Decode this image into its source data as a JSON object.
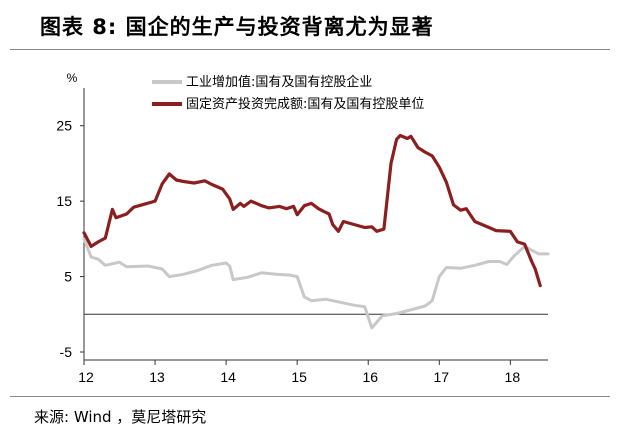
{
  "title": "图表 8:  国企的生产与投资背离尤为显著",
  "source": "来源:  Wind ，莫尼塔研究",
  "chart_data": {
    "type": "line",
    "unit_label": "%",
    "ylim": [
      -5,
      30
    ],
    "y_ticks": [
      25,
      15,
      5,
      -5
    ],
    "y_tick_labels": [
      "25",
      "15",
      "5",
      "-5"
    ],
    "x_ticks": [
      2012,
      2013,
      2014,
      2015,
      2016,
      2017,
      2018
    ],
    "x_tick_labels": [
      "12",
      "13",
      "14",
      "15",
      "16",
      "17",
      "18"
    ],
    "legend_position": "top",
    "series": [
      {
        "name": "工业增加值:国有及国有控股企业",
        "color": "#c8c8c8",
        "points": [
          [
            2012.0,
            10
          ],
          [
            2012.1,
            7.6
          ],
          [
            2012.2,
            7.3
          ],
          [
            2012.3,
            6.5
          ],
          [
            2012.5,
            6.9
          ],
          [
            2012.6,
            6.3
          ],
          [
            2012.9,
            6.4
          ],
          [
            2013.1,
            6.0
          ],
          [
            2013.2,
            5.0
          ],
          [
            2013.4,
            5.3
          ],
          [
            2013.6,
            5.8
          ],
          [
            2013.8,
            6.5
          ],
          [
            2014.0,
            6.8
          ],
          [
            2014.05,
            6.4
          ],
          [
            2014.1,
            4.6
          ],
          [
            2014.3,
            4.9
          ],
          [
            2014.5,
            5.5
          ],
          [
            2014.7,
            5.3
          ],
          [
            2014.9,
            5.2
          ],
          [
            2015.0,
            5.0
          ],
          [
            2015.1,
            2.3
          ],
          [
            2015.2,
            1.8
          ],
          [
            2015.4,
            2.0
          ],
          [
            2015.6,
            1.6
          ],
          [
            2015.8,
            1.2
          ],
          [
            2015.95,
            1.0
          ],
          [
            2016.05,
            -1.8
          ],
          [
            2016.2,
            -0.2
          ],
          [
            2016.4,
            0.1
          ],
          [
            2016.6,
            0.6
          ],
          [
            2016.8,
            1.1
          ],
          [
            2016.9,
            1.8
          ],
          [
            2017.0,
            5.0
          ],
          [
            2017.1,
            6.2
          ],
          [
            2017.3,
            6.1
          ],
          [
            2017.5,
            6.5
          ],
          [
            2017.7,
            7.0
          ],
          [
            2017.85,
            7.0
          ],
          [
            2017.95,
            6.6
          ],
          [
            2018.05,
            7.7
          ],
          [
            2018.2,
            9.0
          ],
          [
            2018.4,
            8.0
          ],
          [
            2018.53,
            8.0
          ]
        ]
      },
      {
        "name": "固定资产投资完成额:国有及国有控股单位",
        "color": "#8b1e1e",
        "points": [
          [
            2012.0,
            10.8
          ],
          [
            2012.1,
            9.0
          ],
          [
            2012.2,
            9.6
          ],
          [
            2012.3,
            10.1
          ],
          [
            2012.4,
            13.9
          ],
          [
            2012.45,
            12.8
          ],
          [
            2012.6,
            13.3
          ],
          [
            2012.7,
            14.2
          ],
          [
            2012.85,
            14.6
          ],
          [
            2013.0,
            15.0
          ],
          [
            2013.1,
            17.3
          ],
          [
            2013.2,
            18.6
          ],
          [
            2013.3,
            17.8
          ],
          [
            2013.4,
            17.6
          ],
          [
            2013.55,
            17.4
          ],
          [
            2013.7,
            17.7
          ],
          [
            2013.8,
            17.2
          ],
          [
            2013.95,
            16.6
          ],
          [
            2014.05,
            15.3
          ],
          [
            2014.1,
            13.9
          ],
          [
            2014.2,
            14.7
          ],
          [
            2014.25,
            14.3
          ],
          [
            2014.35,
            15.0
          ],
          [
            2014.5,
            14.4
          ],
          [
            2014.6,
            14.1
          ],
          [
            2014.75,
            14.3
          ],
          [
            2014.85,
            14.0
          ],
          [
            2014.95,
            14.3
          ],
          [
            2015.0,
            13.2
          ],
          [
            2015.1,
            14.4
          ],
          [
            2015.2,
            14.7
          ],
          [
            2015.3,
            14.0
          ],
          [
            2015.38,
            13.6
          ],
          [
            2015.45,
            13.3
          ],
          [
            2015.5,
            11.9
          ],
          [
            2015.58,
            11.0
          ],
          [
            2015.65,
            12.3
          ],
          [
            2015.8,
            11.9
          ],
          [
            2015.95,
            11.5
          ],
          [
            2016.05,
            11.6
          ],
          [
            2016.12,
            11.0
          ],
          [
            2016.22,
            11.3
          ],
          [
            2016.32,
            20.0
          ],
          [
            2016.4,
            23.2
          ],
          [
            2016.45,
            23.7
          ],
          [
            2016.55,
            23.3
          ],
          [
            2016.6,
            23.6
          ],
          [
            2016.7,
            22.1
          ],
          [
            2016.8,
            21.5
          ],
          [
            2016.9,
            21.0
          ],
          [
            2017.0,
            19.5
          ],
          [
            2017.1,
            17.5
          ],
          [
            2017.2,
            14.5
          ],
          [
            2017.3,
            13.8
          ],
          [
            2017.38,
            14.0
          ],
          [
            2017.5,
            12.3
          ],
          [
            2017.6,
            11.9
          ],
          [
            2017.7,
            11.5
          ],
          [
            2017.8,
            11.1
          ],
          [
            2018.0,
            11.0
          ],
          [
            2018.1,
            9.6
          ],
          [
            2018.2,
            9.3
          ],
          [
            2018.3,
            7.0
          ],
          [
            2018.35,
            6.0
          ],
          [
            2018.42,
            3.8
          ]
        ]
      }
    ]
  }
}
